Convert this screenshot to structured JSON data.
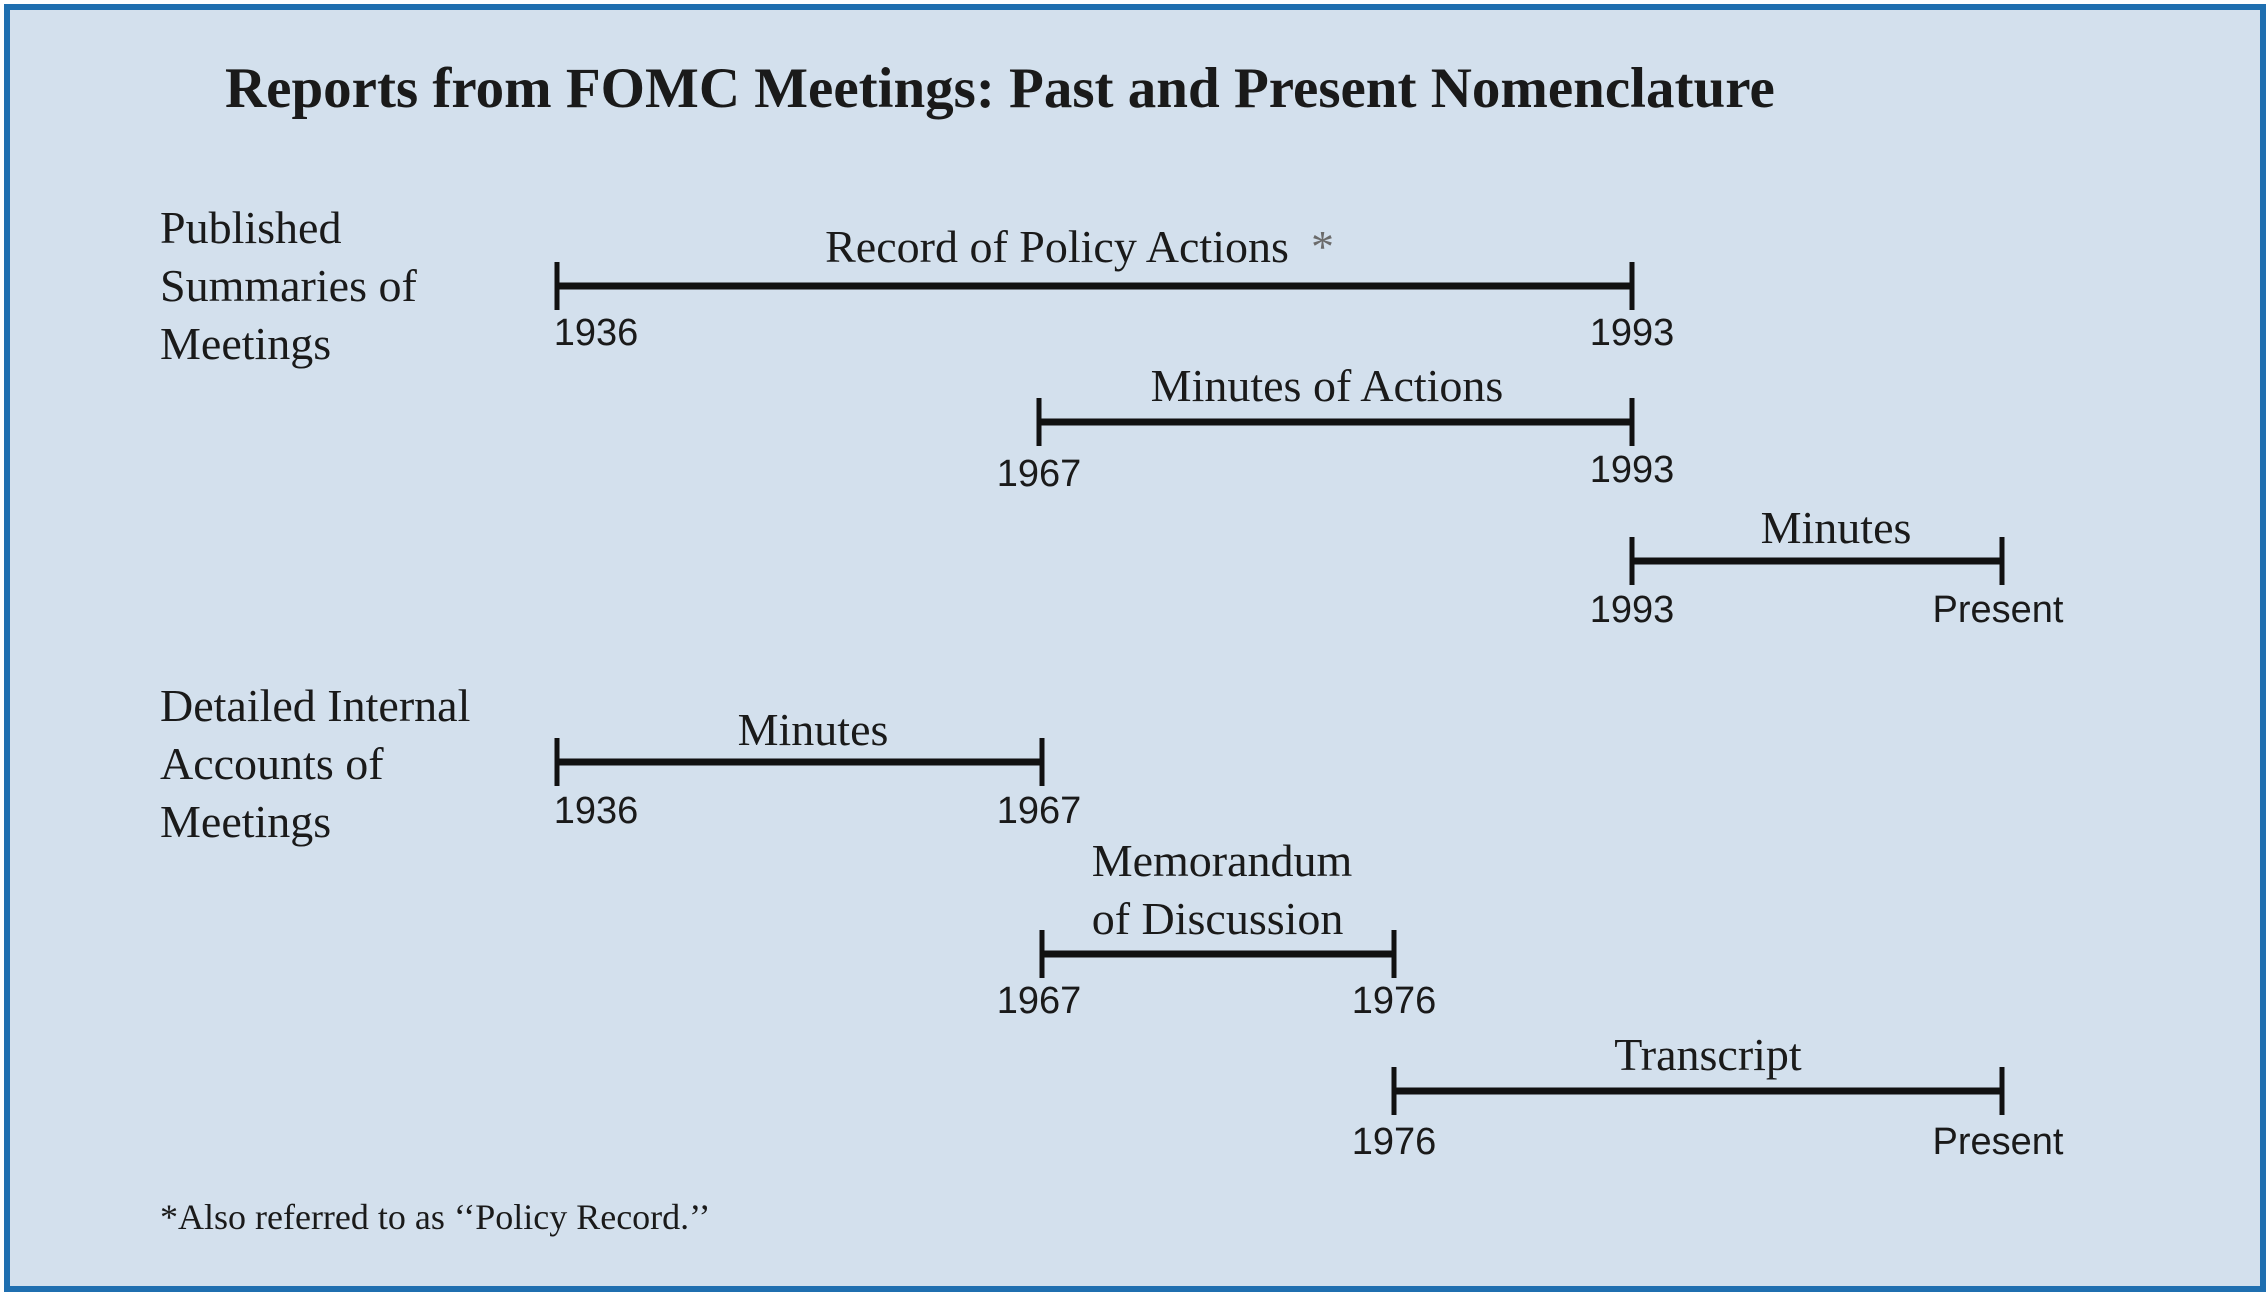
{
  "title": "Reports from FOMC Meetings: Past and Present Nomenclature",
  "groups": [
    {
      "lines": [
        "Published",
        "Summaries of",
        "Meetings"
      ]
    },
    {
      "lines": [
        "Detailed Internal",
        "Accounts of",
        "Meetings"
      ]
    }
  ],
  "timelines": [
    {
      "name": "Record of Policy Actions",
      "marker": "*",
      "start": "1936",
      "end": "1993"
    },
    {
      "name": "Minutes of Actions",
      "start": "1967",
      "end": "1993"
    },
    {
      "name": "Minutes",
      "start": "1993",
      "end": "Present"
    },
    {
      "name": "Minutes",
      "start": "1936",
      "end": "1967"
    },
    {
      "name_lines": [
        "Memorandum",
        "of Discussion"
      ],
      "start": "1967",
      "end": "1976"
    },
    {
      "name": "Transcript",
      "start": "1976",
      "end": "Present"
    }
  ],
  "footnote": "*Also referred to as ‘‘Policy Record.’’",
  "colors": {
    "background": "#d3e0ed",
    "border": "#1f6fb0",
    "line": "#111111"
  }
}
